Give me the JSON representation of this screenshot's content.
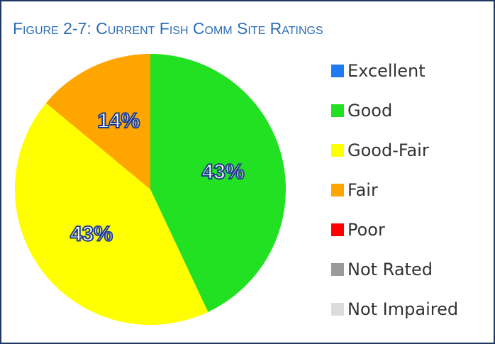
{
  "chart_data": {
    "type": "pie",
    "title": "Figure 2-7: Current Fish Comm Site Ratings",
    "categories": [
      "Excellent",
      "Good",
      "Good-Fair",
      "Fair",
      "Poor",
      "Not Rated",
      "Not Impaired"
    ],
    "values": [
      0,
      43,
      43,
      14,
      0,
      0,
      0
    ],
    "value_labels": [
      null,
      "43%",
      "43%",
      "14%",
      null,
      null,
      null
    ],
    "colors": [
      "#1e7bf0",
      "#22e022",
      "#ffff00",
      "#ffa500",
      "#ff0000",
      "#999999",
      "#dcdcdc"
    ],
    "legend": "right"
  }
}
